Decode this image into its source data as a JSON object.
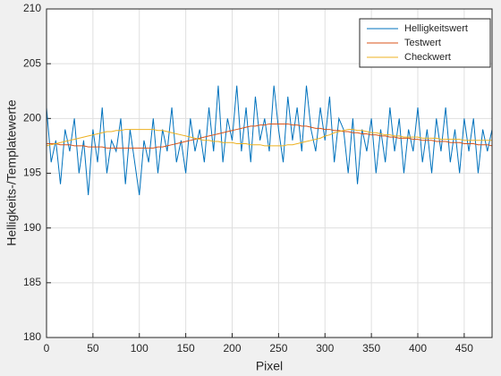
{
  "chart_data": {
    "type": "line",
    "xlabel": "Pixel",
    "ylabel": "Helligkeits-/Templatewerte",
    "xlim": [
      0,
      480
    ],
    "ylim": [
      180,
      210
    ],
    "xticks": [
      0,
      50,
      100,
      150,
      200,
      250,
      300,
      350,
      400,
      450
    ],
    "yticks": [
      180,
      185,
      190,
      195,
      200,
      205,
      210
    ],
    "grid": true,
    "legend": "upper right",
    "x": [
      0,
      5,
      10,
      15,
      20,
      25,
      30,
      35,
      40,
      45,
      50,
      55,
      60,
      65,
      70,
      75,
      80,
      85,
      90,
      95,
      100,
      105,
      110,
      115,
      120,
      125,
      130,
      135,
      140,
      145,
      150,
      155,
      160,
      165,
      170,
      175,
      180,
      185,
      190,
      195,
      200,
      205,
      210,
      215,
      220,
      225,
      230,
      235,
      240,
      245,
      250,
      255,
      260,
      265,
      270,
      275,
      280,
      285,
      290,
      295,
      300,
      305,
      310,
      315,
      320,
      325,
      330,
      335,
      340,
      345,
      350,
      355,
      360,
      365,
      370,
      375,
      380,
      385,
      390,
      395,
      400,
      405,
      410,
      415,
      420,
      425,
      430,
      435,
      440,
      445,
      450,
      455,
      460,
      465,
      470,
      475,
      480
    ],
    "series": [
      {
        "name": "Helligkeitswert",
        "color": "#0072bd",
        "values": [
          201,
          196,
          198,
          194,
          199,
          197,
          200,
          195,
          198,
          193,
          199,
          196,
          201,
          195,
          198,
          197,
          200,
          194,
          199,
          196,
          193,
          198,
          196,
          200,
          195,
          199,
          197,
          201,
          196,
          198,
          195,
          200,
          197,
          199,
          196,
          201,
          197,
          203,
          196,
          200,
          198,
          203,
          197,
          201,
          196,
          202,
          198,
          200,
          197,
          203,
          199,
          196,
          202,
          198,
          201,
          197,
          203,
          199,
          197,
          201,
          198,
          202,
          196,
          200,
          199,
          195,
          200,
          194,
          199,
          197,
          200,
          195,
          199,
          196,
          201,
          197,
          200,
          195,
          199,
          197,
          201,
          196,
          199,
          195,
          200,
          197,
          201,
          196,
          199,
          195,
          200,
          197,
          200,
          195,
          199,
          197,
          199
        ]
      },
      {
        "name": "Testwert",
        "color": "#d95319",
        "values": [
          197.7,
          197.7,
          197.7,
          197.6,
          197.6,
          197.6,
          197.5,
          197.5,
          197.5,
          197.4,
          197.4,
          197.4,
          197.4,
          197.3,
          197.3,
          197.3,
          197.3,
          197.3,
          197.3,
          197.3,
          197.3,
          197.3,
          197.3,
          197.3,
          197.4,
          197.4,
          197.5,
          197.6,
          197.7,
          197.8,
          197.9,
          198.0,
          198.1,
          198.2,
          198.3,
          198.4,
          198.5,
          198.6,
          198.7,
          198.8,
          198.9,
          199.0,
          199.1,
          199.2,
          199.3,
          199.3,
          199.4,
          199.4,
          199.5,
          199.5,
          199.5,
          199.5,
          199.5,
          199.4,
          199.4,
          199.3,
          199.3,
          199.2,
          199.1,
          199.1,
          199.0,
          199.0,
          198.9,
          198.9,
          198.8,
          198.8,
          198.7,
          198.7,
          198.6,
          198.6,
          198.5,
          198.5,
          198.4,
          198.4,
          198.3,
          198.3,
          198.2,
          198.2,
          198.2,
          198.1,
          198.1,
          198.0,
          198.0,
          198.0,
          197.9,
          197.9,
          197.9,
          197.8,
          197.8,
          197.8,
          197.7,
          197.7,
          197.7,
          197.6,
          197.6,
          197.6,
          197.5
        ]
      },
      {
        "name": "Checkwert",
        "color": "#edb120",
        "values": [
          197.5,
          197.6,
          197.7,
          197.8,
          197.9,
          198.0,
          198.1,
          198.2,
          198.3,
          198.4,
          198.5,
          198.6,
          198.7,
          198.8,
          198.8,
          198.9,
          198.9,
          199.0,
          199.0,
          199.0,
          199.0,
          199.0,
          199.0,
          199.0,
          198.9,
          198.9,
          198.8,
          198.7,
          198.6,
          198.5,
          198.4,
          198.3,
          198.2,
          198.1,
          198.0,
          198.0,
          197.9,
          197.9,
          197.8,
          197.8,
          197.8,
          197.7,
          197.7,
          197.7,
          197.6,
          197.6,
          197.6,
          197.5,
          197.5,
          197.5,
          197.5,
          197.5,
          197.6,
          197.6,
          197.7,
          197.8,
          197.9,
          198.0,
          198.1,
          198.2,
          198.4,
          198.5,
          198.7,
          198.8,
          198.9,
          199.0,
          199.0,
          198.9,
          198.9,
          198.8,
          198.7,
          198.7,
          198.6,
          198.5,
          198.5,
          198.4,
          198.4,
          198.3,
          198.3,
          198.3,
          198.3,
          198.2,
          198.2,
          198.2,
          198.2,
          198.1,
          198.1,
          198.1,
          198.1,
          198.1,
          198.0,
          198.0,
          198.0,
          198.0,
          198.0,
          198.0,
          198.0
        ]
      }
    ]
  }
}
